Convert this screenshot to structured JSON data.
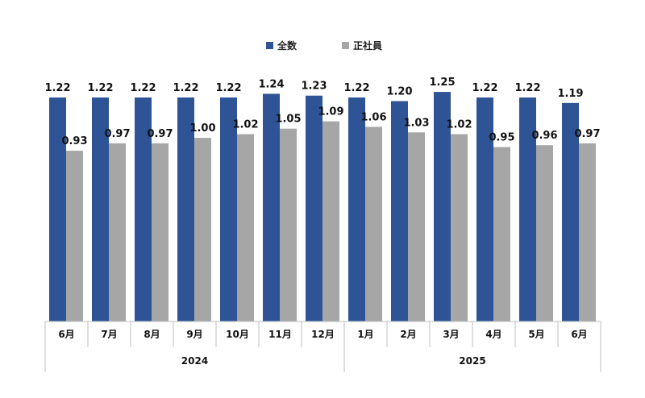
{
  "chart_data": {
    "type": "bar",
    "categories": [
      "6月",
      "7月",
      "8月",
      "9月",
      "10月",
      "11月",
      "12月",
      "1月",
      "2月",
      "3月",
      "4月",
      "5月",
      "6月"
    ],
    "groups": [
      {
        "label": "2024",
        "count": 7
      },
      {
        "label": "2025",
        "count": 6
      }
    ],
    "series": [
      {
        "name": "全数",
        "color": "#2F5496",
        "values": [
          1.22,
          1.22,
          1.22,
          1.22,
          1.22,
          1.24,
          1.23,
          1.22,
          1.2,
          1.25,
          1.22,
          1.22,
          1.19
        ]
      },
      {
        "name": "正社員",
        "color": "#A6A6A6",
        "values": [
          0.93,
          0.97,
          0.97,
          1.0,
          1.02,
          1.05,
          1.09,
          1.06,
          1.03,
          1.02,
          0.95,
          0.96,
          0.97
        ]
      }
    ],
    "value_labels": [
      [
        "1.22",
        "1.22",
        "1.22",
        "1.22",
        "1.22",
        "1.24",
        "1.23",
        "1.22",
        "1.20",
        "1.25",
        "1.22",
        "1.22",
        "1.19"
      ],
      [
        "0.93",
        "0.97",
        "0.97",
        "1.00",
        "1.02",
        "1.05",
        "1.09",
        "1.06",
        "1.03",
        "1.02",
        "0.95",
        "0.96",
        "0.97"
      ]
    ],
    "ylim": [
      0,
      1.4
    ],
    "grid": false,
    "legend_position": "top-center",
    "title": "",
    "xlabel": "",
    "ylabel": ""
  }
}
